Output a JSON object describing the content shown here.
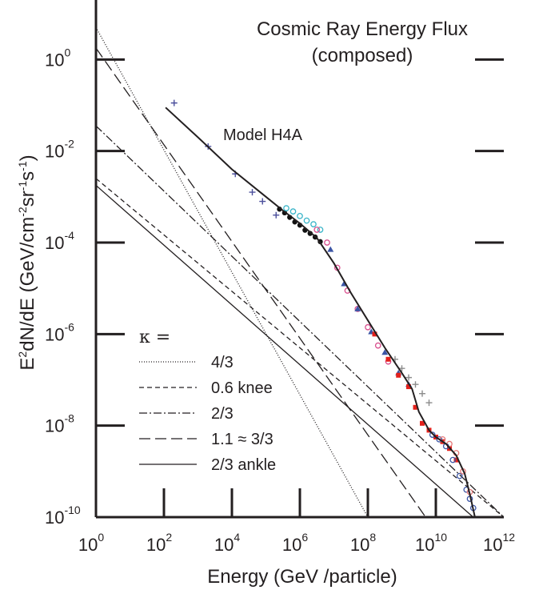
{
  "chart_data": {
    "type": "scatter",
    "title_lines": [
      "Cosmic Ray Energy Flux",
      "(composed)"
    ],
    "xlabel": "Energy  (GeV /particle)",
    "ylabel_html": "E²dN/dE  (GeV/cm⁻²sr⁻¹s⁻¹)",
    "ylabel_parts": [
      "E",
      "2",
      "dN/dE  (GeV/cm",
      "-2",
      "sr",
      "-1",
      "s",
      "-1",
      ")"
    ],
    "x_scale": "log",
    "y_scale": "log",
    "xlim_exp": [
      0,
      12
    ],
    "ylim_exp": [
      -10,
      1.3
    ],
    "x_ticks": [
      {
        "base": "10",
        "exp": "0",
        "value_exp": 0
      },
      {
        "base": "10",
        "exp": "2",
        "value_exp": 2
      },
      {
        "base": "10",
        "exp": "4",
        "value_exp": 4
      },
      {
        "base": "10",
        "exp": "6",
        "value_exp": 6
      },
      {
        "base": "10",
        "exp": "8",
        "value_exp": 8
      },
      {
        "base": "10",
        "exp": "10",
        "value_exp": 10
      },
      {
        "base": "10",
        "exp": "12",
        "value_exp": 12
      }
    ],
    "y_ticks": [
      {
        "base": "10",
        "exp": "0",
        "value_exp": 0
      },
      {
        "base": "10",
        "exp": "-2",
        "value_exp": -2
      },
      {
        "base": "10",
        "exp": "-4",
        "value_exp": -4
      },
      {
        "base": "10",
        "exp": "-6",
        "value_exp": -6
      },
      {
        "base": "10",
        "exp": "-8",
        "value_exp": -8
      },
      {
        "base": "10",
        "exp": "-10",
        "value_exp": -10
      }
    ],
    "model_label": "Model H4A",
    "legend": {
      "placement": "bottom-left",
      "header": "κ =",
      "entries": [
        {
          "label": "4/3",
          "dash": "1,2"
        },
        {
          "label": "0.6  knee",
          "dash": "6,4"
        },
        {
          "label": "2/3",
          "dash": "10,3,2,3"
        },
        {
          "label": "1.1 ≈ 3/3",
          "dash": "14,6"
        },
        {
          "label": "2/3 ankle",
          "dash": ""
        }
      ]
    },
    "reference_lines": [
      {
        "label": "4/3",
        "dash": "1,2",
        "x_exp": [
          0,
          8
        ],
        "y_exp": [
          0.7,
          -10
        ]
      },
      {
        "label": "0.6  knee",
        "dash": "6,4",
        "x_exp": [
          0,
          12
        ],
        "y_exp": [
          -2.6,
          -10
        ]
      },
      {
        "label": "2/3",
        "dash": "10,3,2,3",
        "x_exp": [
          0,
          12
        ],
        "y_exp": [
          -1.45,
          -10
        ]
      },
      {
        "label": "1.1 ≈ 3/3",
        "dash": "14,6",
        "x_exp": [
          0,
          9.7
        ],
        "y_exp": [
          0.25,
          -10
        ]
      },
      {
        "label": "2/3 ankle",
        "dash": "",
        "x_exp": [
          0,
          11.1
        ],
        "y_exp": [
          -2.75,
          -10
        ]
      }
    ],
    "model_curve": {
      "name": "Model H4A",
      "x_exp": [
        2.05,
        3.0,
        4.0,
        5.0,
        5.5,
        6.0,
        6.5,
        7.0,
        7.5,
        8.0,
        8.5,
        9.0,
        9.3,
        9.5,
        9.8,
        10.0,
        10.3,
        10.6,
        10.85,
        11.0,
        11.15
      ],
      "y_exp": [
        -1.05,
        -1.7,
        -2.4,
        -3.0,
        -3.3,
        -3.58,
        -3.9,
        -4.45,
        -5.1,
        -5.7,
        -6.3,
        -6.85,
        -7.2,
        -7.7,
        -8.1,
        -8.25,
        -8.4,
        -8.65,
        -9.05,
        -9.5,
        -10.0
      ]
    },
    "data_series": [
      {
        "marker": "plus",
        "color": "#4b4f9c",
        "x_exp": [
          2.3,
          3.3,
          4.1,
          4.6,
          4.9,
          5.3
        ],
        "y_exp": [
          -0.95,
          -1.9,
          -2.5,
          -2.9,
          -3.1,
          -3.4
        ]
      },
      {
        "marker": "dot",
        "color": "#111111",
        "x_exp": [
          5.4,
          5.55,
          5.7,
          5.85,
          6.0,
          6.15,
          6.3,
          6.45,
          6.6
        ],
        "y_exp": [
          -3.27,
          -3.35,
          -3.45,
          -3.55,
          -3.62,
          -3.73,
          -3.8,
          -3.88,
          -3.98
        ]
      },
      {
        "marker": "circle",
        "color": "#39b4c8",
        "x_exp": [
          5.6,
          5.8,
          6.0,
          6.2,
          6.4,
          6.6
        ],
        "y_exp": [
          -3.25,
          -3.32,
          -3.42,
          -3.52,
          -3.6,
          -3.72
        ]
      },
      {
        "marker": "circle",
        "color": "#d94f8e",
        "x_exp": [
          6.5,
          6.8,
          7.1,
          7.4,
          7.7,
          8.0,
          8.3,
          8.6
        ],
        "y_exp": [
          -3.72,
          -4.0,
          -4.55,
          -5.05,
          -5.45,
          -5.85,
          -6.25,
          -6.6
        ]
      },
      {
        "marker": "triangle",
        "color": "#3b55a5",
        "x_exp": [
          6.9,
          7.3,
          7.7,
          8.1,
          8.5,
          8.9,
          9.2
        ],
        "y_exp": [
          -4.15,
          -4.9,
          -5.45,
          -5.95,
          -6.4,
          -6.85,
          -7.1
        ]
      },
      {
        "marker": "square",
        "color": "#e3201b",
        "x_exp": [
          8.2,
          8.6,
          8.9,
          9.2,
          9.4,
          9.6,
          9.8,
          10.0,
          10.2,
          10.4,
          10.6
        ],
        "y_exp": [
          -6.0,
          -6.55,
          -6.9,
          -7.15,
          -7.6,
          -7.95,
          -8.1,
          -8.25,
          -8.35,
          -8.5,
          -8.75
        ]
      },
      {
        "marker": "plus",
        "color": "#8c8c8c",
        "x_exp": [
          8.8,
          9.0,
          9.2,
          9.4,
          9.6,
          9.8
        ],
        "y_exp": [
          -6.55,
          -6.75,
          -6.95,
          -7.1,
          -7.3,
          -7.5
        ]
      },
      {
        "marker": "circle",
        "color": "#3b55a5",
        "x_exp": [
          9.9,
          10.1,
          10.3,
          10.5,
          10.7,
          10.9,
          11.0,
          11.1
        ],
        "y_exp": [
          -8.2,
          -8.3,
          -8.45,
          -8.75,
          -9.1,
          -9.4,
          -9.6,
          -9.8
        ]
      },
      {
        "marker": "circle",
        "color": "#e57a7a",
        "x_exp": [
          10.2,
          10.4,
          10.6,
          10.8,
          11.0
        ],
        "y_exp": [
          -8.3,
          -8.4,
          -8.6,
          -9.0,
          -9.45
        ]
      }
    ]
  }
}
